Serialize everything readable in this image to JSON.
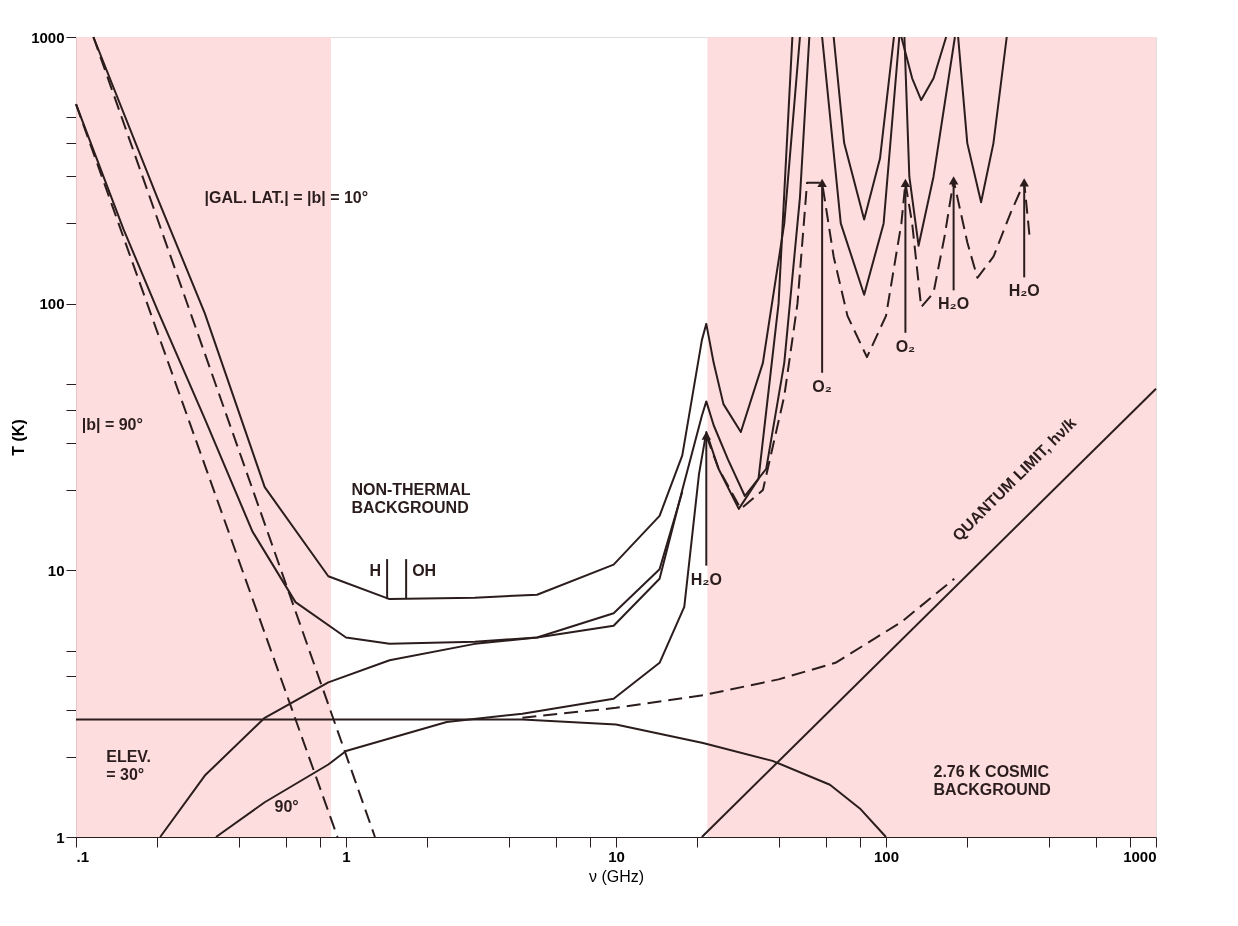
{
  "chart_data": {
    "type": "line",
    "xlabel": "ν (GHz)",
    "ylabel": "T (K)",
    "log": "xy",
    "grid": false,
    "marker": "none",
    "xlim": [
      0.1,
      1000
    ],
    "ylim": [
      1,
      1000
    ],
    "xticks": [
      {
        "value": 0.1,
        "label": ".1"
      },
      {
        "value": 0.2,
        "label": null
      },
      {
        "value": 0.4,
        "label": null
      },
      {
        "value": 0.6,
        "label": null
      },
      {
        "value": 0.8,
        "label": null
      },
      1,
      {
        "value": 2,
        "label": null
      },
      {
        "value": 4,
        "label": null
      },
      {
        "value": 6,
        "label": null
      },
      {
        "value": 8,
        "label": null
      },
      10,
      {
        "value": 20,
        "label": null
      },
      {
        "value": 40,
        "label": null
      },
      {
        "value": 60,
        "label": null
      },
      {
        "value": 80,
        "label": null
      },
      100,
      {
        "value": 200,
        "label": null
      },
      {
        "value": 400,
        "label": null
      },
      {
        "value": 600,
        "label": null
      },
      {
        "value": 800,
        "label": null
      },
      1000
    ],
    "yticks": [
      1,
      {
        "value": 2,
        "label": null
      },
      {
        "value": 3,
        "label": null
      },
      {
        "value": 4,
        "label": null
      },
      {
        "value": 5,
        "label": null
      },
      10,
      {
        "value": 20,
        "label": null
      },
      {
        "value": 30,
        "label": null
      },
      {
        "value": 40,
        "label": null
      },
      {
        "value": 50,
        "label": null
      },
      100,
      {
        "value": 200,
        "label": null
      },
      {
        "value": 300,
        "label": null
      },
      {
        "value": 400,
        "label": null
      },
      {
        "value": 500,
        "label": null
      },
      1000
    ],
    "bands": [
      {
        "axis": "x",
        "from": 0.1,
        "to": 0.88,
        "color": "#fdd9d9"
      },
      {
        "axis": "x",
        "from": 21.8,
        "to": 1000,
        "color": "#fdd9d9"
      }
    ],
    "series": [
      {
        "color": "#2b1d1d",
        "line_style": "solid",
        "x": [
          0.116,
          0.2,
          0.3,
          0.5,
          0.86,
          1.45,
          3,
          5.1,
          9.8,
          14.5,
          17.6,
          20.8,
          21.6,
          23,
          25,
          29,
          35,
          42,
          48
        ],
        "values": [
          1000,
          250,
          92,
          20.5,
          9.5,
          7.8,
          7.9,
          8.1,
          10.5,
          16,
          27,
          73,
          84,
          60,
          42,
          33,
          60,
          200,
          1000
        ]
      },
      {
        "color": "#2b1d1d",
        "line_style": "solid",
        "x": [
          0.1,
          0.15,
          0.2,
          0.3,
          0.45,
          0.65,
          1.0,
          1.45,
          3,
          5.1,
          9.8,
          14.5,
          17.6
        ],
        "values": [
          560,
          190,
          95,
          37,
          14,
          7.6,
          5.6,
          5.3,
          5.4,
          5.6,
          6.9,
          10.1,
          19.7
        ]
      },
      {
        "color": "#2b1d1d",
        "line_style": "solid",
        "x": [
          0.205,
          0.3,
          0.5,
          0.86,
          1.45,
          3,
          5.1,
          9.8,
          14.5,
          17.6,
          20.8,
          21.6,
          23,
          26,
          30,
          36,
          42,
          48,
          52
        ],
        "values": [
          1,
          1.7,
          2.8,
          3.8,
          4.6,
          5.3,
          5.6,
          6.2,
          9.3,
          20,
          38,
          43,
          35,
          26,
          19,
          24,
          60,
          250,
          1000
        ]
      },
      {
        "color": "#2b1d1d",
        "line_style": "solid",
        "x": [
          0.33,
          0.5,
          0.86,
          1.0,
          2.36,
          4.5,
          9.8,
          14.5,
          17.9,
          20.3,
          21.6,
          24,
          28.5,
          33.7,
          40,
          45
        ],
        "values": [
          1,
          1.35,
          1.87,
          2.1,
          2.7,
          2.9,
          3.3,
          4.5,
          7.3,
          23,
          33,
          24,
          17,
          22,
          100,
          1000
        ]
      },
      {
        "color": "#2b1d1d",
        "line_style": "dashed",
        "x": [
          4.5,
          10,
          21,
          40,
          65,
          114,
          179
        ],
        "values": [
          2.8,
          3.05,
          3.4,
          3.9,
          4.5,
          6.4,
          9.3
        ]
      },
      {
        "color": "#2b1d1d",
        "line_style": "dashed",
        "x": [
          21.6,
          24,
          29,
          35,
          42,
          47,
          51,
          58,
          64,
          72,
          85,
          100,
          114,
          118,
          125,
          135,
          150,
          165,
          178,
          200,
          218,
          250,
          290,
          325,
          340
        ],
        "values": [
          32,
          24,
          17,
          20,
          45,
          100,
          284,
          284,
          150,
          90,
          63,
          90,
          200,
          284,
          200,
          97,
          110,
          180,
          290,
          170,
          125,
          150,
          220,
          285,
          180
        ]
      },
      {
        "color": "#2b1d1d",
        "line_style": "solid",
        "x": [
          64,
          70,
          83,
          95,
          107
        ],
        "values": [
          1000,
          400,
          207,
          350,
          1000
        ]
      },
      {
        "color": "#2b1d1d",
        "line_style": "solid",
        "x": [
          58,
          68,
          83,
          98,
          112
        ],
        "values": [
          1000,
          200,
          108,
          200,
          1000
        ]
      },
      {
        "color": "#2b1d1d",
        "line_style": "solid",
        "x": [
          114,
          125,
          135,
          150,
          167
        ],
        "values": [
          1000,
          700,
          580,
          700,
          1000
        ]
      },
      {
        "color": "#2b1d1d",
        "line_style": "solid",
        "x": [
          117,
          122,
          132,
          150,
          180
        ],
        "values": [
          1000,
          300,
          165,
          300,
          1000
        ]
      },
      {
        "color": "#2b1d1d",
        "line_style": "solid",
        "x": [
          185,
          200,
          225,
          250,
          280
        ],
        "values": [
          1000,
          400,
          240,
          400,
          1000
        ]
      },
      {
        "color": "#2b1d1d",
        "line_style": "solid",
        "x": [
          20.8,
          1000
        ],
        "values": [
          1,
          48
        ]
      },
      {
        "color": "#2b1d1d",
        "line_style": "solid",
        "x": [
          0.1,
          1,
          4.5,
          10,
          21,
          38,
          62,
          80,
          100
        ],
        "values": [
          2.76,
          2.76,
          2.76,
          2.64,
          2.25,
          1.93,
          1.57,
          1.28,
          1
        ]
      },
      {
        "color": "#2b1d1d",
        "line_style": "dashed",
        "x": [
          0.116,
          1.28
        ],
        "values": [
          1000,
          1
        ]
      },
      {
        "color": "#2b1d1d",
        "line_style": "dashed",
        "x": [
          0.1,
          0.93
        ],
        "values": [
          560,
          1
        ]
      }
    ],
    "annotations": [
      "|GAL. LAT.| = |b| = 10°",
      "|b| = 90°",
      "NON-THERMAL\nBACKGROUND",
      {
        "text": "H",
        "x": 1.42,
        "y": 7.8
      },
      {
        "text": "OH",
        "x": 1.67,
        "y": 7.8
      },
      {
        "text": "H₂O",
        "x": 21.6,
        "y": 32
      },
      {
        "text": "O₂",
        "x": 58,
        "y": 284
      },
      {
        "text": "O₂",
        "x": 118,
        "y": 284
      },
      {
        "text": "H₂O",
        "x": 178,
        "y": 290
      },
      {
        "text": "H₂O",
        "x": 325,
        "y": 285
      },
      "QUANTUM LIMIT, hν/k",
      "2.76 K COSMIC\nBACKGROUND",
      "ELEV.\n= 30°",
      "90°"
    ]
  }
}
